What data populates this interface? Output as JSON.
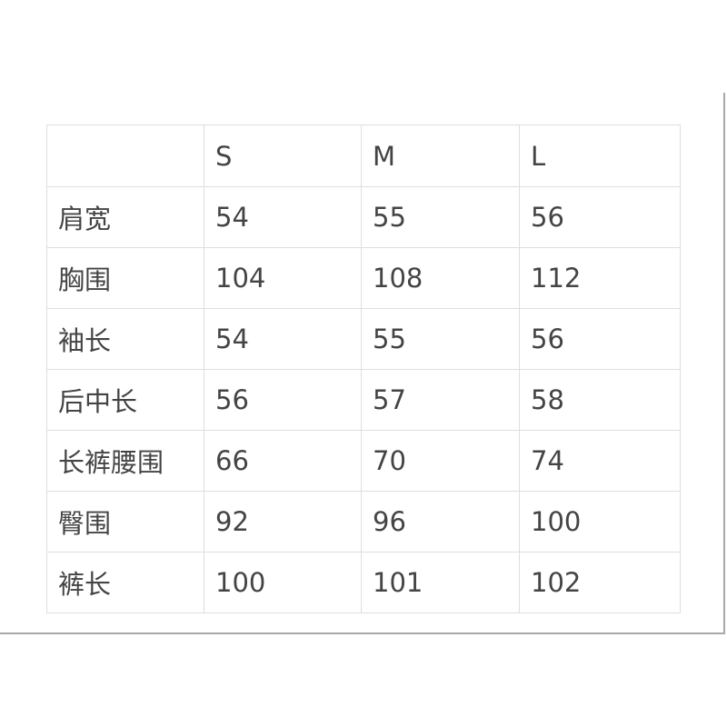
{
  "table": {
    "headers": [
      "",
      "S",
      "M",
      "L"
    ],
    "rows": [
      [
        "肩宽",
        "54",
        "55",
        "56"
      ],
      [
        "胸围",
        "104",
        "108",
        "112"
      ],
      [
        "袖长",
        "54",
        "55",
        "56"
      ],
      [
        "后中长",
        "56",
        "57",
        "58"
      ],
      [
        "长裤腰围",
        "66",
        "70",
        "74"
      ],
      [
        "臀围",
        "92",
        "96",
        "100"
      ],
      [
        "裤长",
        "100",
        "101",
        "102"
      ]
    ]
  }
}
